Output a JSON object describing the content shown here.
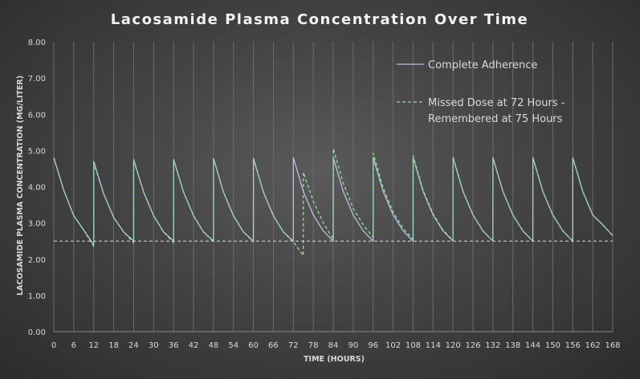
{
  "chart_data": {
    "type": "line",
    "title": "Lacosamide Plasma Concentration Over Time",
    "xlabel": "TIME (HOURS)",
    "ylabel": "LACOSAMIDE PLASMA CONCENTRATION (MG/LITER)",
    "xlim": [
      0,
      168
    ],
    "ylim": [
      0,
      8
    ],
    "x_ticks": [
      "0",
      "6",
      "12",
      "18",
      "24",
      "30",
      "36",
      "42",
      "48",
      "54",
      "60",
      "66",
      "72",
      "78",
      "84",
      "90",
      "96",
      "102",
      "108",
      "114",
      "120",
      "126",
      "132",
      "138",
      "144",
      "150",
      "156",
      "162",
      "168"
    ],
    "y_ticks": [
      "0.00",
      "1.00",
      "2.00",
      "3.00",
      "4.00",
      "5.00",
      "6.00",
      "7.00",
      "8.00"
    ],
    "legend_position": "top-right",
    "grid": "vertical",
    "reference_line": {
      "y": 2.5,
      "style": "dashed",
      "color": "#d9d9d9"
    },
    "series": [
      {
        "name": "Complete Adherence",
        "color": "#b9c2e6",
        "style": "solid",
        "x": [
          0,
          3,
          6,
          9,
          12,
          12.01,
          15,
          18,
          21,
          24,
          24.01,
          27,
          30,
          33,
          36,
          36.01,
          39,
          42,
          45,
          48,
          48.01,
          51,
          54,
          57,
          60,
          60.01,
          63,
          66,
          69,
          72,
          72.01,
          75,
          78,
          81,
          84,
          84.01,
          87,
          90,
          93,
          96,
          96.01,
          99,
          102,
          105,
          108,
          108.01,
          111,
          114,
          117,
          120,
          120.01,
          123,
          126,
          129,
          132,
          132.01,
          135,
          138,
          141,
          144,
          144.01,
          147,
          150,
          153,
          156,
          156.01,
          159,
          162,
          165,
          168
        ],
        "y": [
          4.8,
          3.9,
          3.2,
          2.8,
          2.4,
          4.7,
          3.8,
          3.15,
          2.75,
          2.5,
          4.75,
          3.85,
          3.2,
          2.75,
          2.5,
          4.75,
          3.85,
          3.2,
          2.75,
          2.5,
          4.78,
          3.85,
          3.2,
          2.75,
          2.5,
          4.78,
          3.85,
          3.2,
          2.75,
          2.5,
          4.8,
          3.87,
          3.22,
          2.78,
          2.5,
          4.8,
          3.87,
          3.22,
          2.78,
          2.5,
          4.8,
          3.87,
          3.22,
          2.78,
          2.5,
          4.8,
          3.87,
          3.22,
          2.78,
          2.5,
          4.8,
          3.87,
          3.22,
          2.78,
          2.5,
          4.8,
          3.87,
          3.22,
          2.78,
          2.5,
          4.8,
          3.87,
          3.22,
          2.78,
          2.5,
          4.8,
          3.87,
          3.22,
          2.95,
          2.65
        ]
      },
      {
        "name": "Missed Dose at 72 Hours - Remembered at 75 Hours",
        "color": "#8fe39a",
        "style": "dashed",
        "x": [
          0,
          3,
          6,
          9,
          12,
          12.01,
          15,
          18,
          21,
          24,
          24.01,
          27,
          30,
          33,
          36,
          36.01,
          39,
          42,
          45,
          48,
          48.01,
          51,
          54,
          57,
          60,
          60.01,
          63,
          66,
          69,
          72,
          75,
          75.01,
          78,
          81,
          84,
          84.01,
          87,
          90,
          93,
          96,
          96.01,
          99,
          102,
          105,
          108,
          108.01,
          111,
          114,
          117,
          120,
          120.01,
          123,
          126,
          129,
          132,
          132.01,
          135,
          138,
          141,
          144,
          144.01,
          147,
          150,
          153,
          156,
          156.01,
          159,
          162,
          165,
          168
        ],
        "y": [
          4.8,
          3.9,
          3.2,
          2.8,
          2.35,
          4.65,
          3.8,
          3.15,
          2.75,
          2.45,
          4.72,
          3.85,
          3.2,
          2.75,
          2.45,
          4.75,
          3.85,
          3.2,
          2.75,
          2.48,
          4.78,
          3.85,
          3.2,
          2.75,
          2.48,
          4.78,
          3.85,
          3.2,
          2.75,
          2.48,
          2.1,
          4.4,
          3.6,
          3.0,
          2.55,
          5.05,
          4.1,
          3.4,
          2.95,
          2.6,
          4.92,
          3.97,
          3.3,
          2.85,
          2.55,
          4.85,
          3.9,
          3.25,
          2.8,
          2.52,
          4.82,
          3.88,
          3.22,
          2.78,
          2.5,
          4.8,
          3.87,
          3.22,
          2.78,
          2.5,
          4.8,
          3.87,
          3.22,
          2.78,
          2.5,
          4.8,
          3.87,
          3.22,
          2.95,
          2.65
        ]
      }
    ]
  }
}
